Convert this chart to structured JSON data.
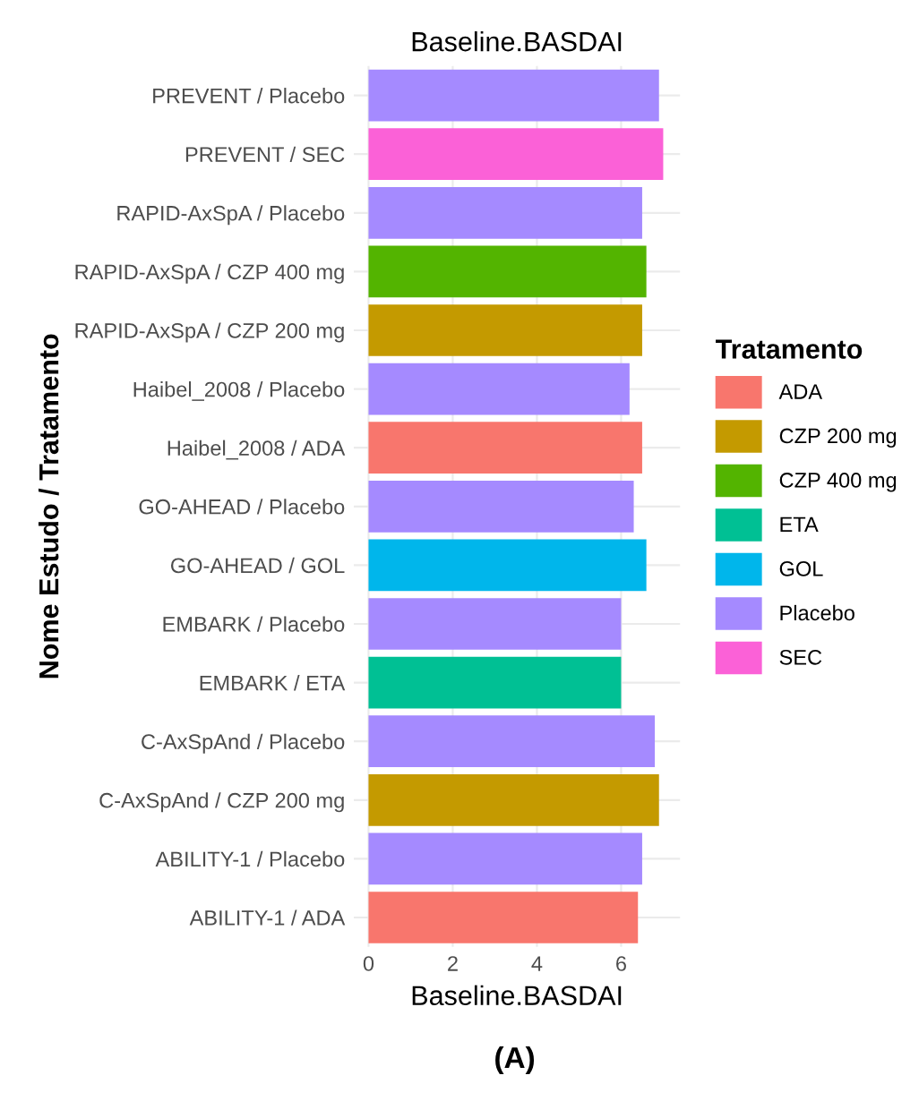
{
  "chart_data": {
    "type": "bar",
    "orientation": "horizontal",
    "title": "Baseline.BASDAI",
    "xlabel": "Baseline.BASDAI",
    "ylabel": "Nome Estudo / Tratamento",
    "legend_title": "Tratamento",
    "legend": "right",
    "grid": true,
    "categories": [
      "PREVENT / Placebo",
      "PREVENT / SEC",
      "RAPID-AxSpA / Placebo",
      "RAPID-AxSpA / CZP 400 mg",
      "RAPID-AxSpA / CZP 200 mg",
      "Haibel_2008 / Placebo",
      "Haibel_2008 / ADA",
      "GO-AHEAD / Placebo",
      "GO-AHEAD / GOL",
      "EMBARK / Placebo",
      "EMBARK / ETA",
      "C-AxSpAnd / Placebo",
      "C-AxSpAnd / CZP 200 mg",
      "ABILITY-1 / Placebo",
      "ABILITY-1 / ADA"
    ],
    "series": [
      {
        "name": "ADA",
        "color": "#f8766d",
        "values": [
          null,
          null,
          null,
          null,
          null,
          null,
          6.5,
          null,
          null,
          null,
          null,
          null,
          null,
          null,
          6.4
        ]
      },
      {
        "name": "CZP 200 mg",
        "color": "#c49a00",
        "values": [
          null,
          null,
          null,
          null,
          6.5,
          null,
          null,
          null,
          null,
          null,
          null,
          null,
          6.9,
          null,
          null
        ]
      },
      {
        "name": "CZP 400 mg",
        "color": "#53b400",
        "values": [
          null,
          null,
          null,
          6.6,
          null,
          null,
          null,
          null,
          null,
          null,
          null,
          null,
          null,
          null,
          null
        ]
      },
      {
        "name": "ETA",
        "color": "#00c094",
        "values": [
          null,
          null,
          null,
          null,
          null,
          null,
          null,
          null,
          null,
          null,
          6.0,
          null,
          null,
          null,
          null
        ]
      },
      {
        "name": "GOL",
        "color": "#00b6eb",
        "values": [
          null,
          null,
          null,
          null,
          null,
          null,
          null,
          null,
          6.6,
          null,
          null,
          null,
          null,
          null,
          null
        ]
      },
      {
        "name": "Placebo",
        "color": "#a58aff",
        "values": [
          6.9,
          null,
          6.5,
          null,
          null,
          6.2,
          null,
          6.3,
          null,
          6.0,
          null,
          6.8,
          null,
          6.5,
          null
        ]
      },
      {
        "name": "SEC",
        "color": "#fb61d7",
        "values": [
          null,
          7.0,
          null,
          null,
          null,
          null,
          null,
          null,
          null,
          null,
          null,
          null,
          null,
          null,
          null
        ]
      }
    ],
    "xlim": [
      -0.35,
      7.4
    ],
    "xticks": [
      0,
      2,
      4,
      6
    ],
    "annotations": [
      "(A)"
    ]
  }
}
